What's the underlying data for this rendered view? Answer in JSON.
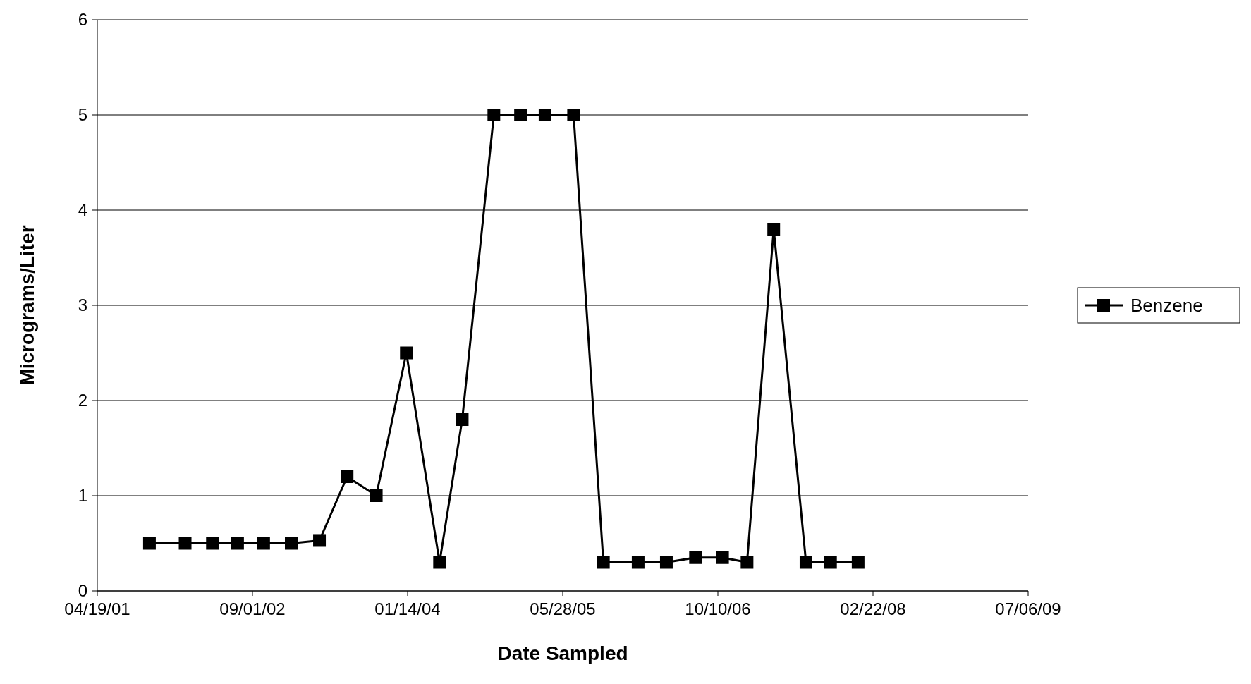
{
  "chart_data": {
    "type": "line",
    "xlabel": "Date Sampled",
    "ylabel": "Micrograms/Liter",
    "x": [
      "2001-10-04",
      "2002-01-27",
      "2002-04-25",
      "2002-07-15",
      "2002-10-07",
      "2003-01-04",
      "2003-04-05",
      "2003-07-03",
      "2003-10-05",
      "2004-01-10",
      "2004-04-26",
      "2004-07-08",
      "2004-10-18",
      "2005-01-12",
      "2005-04-01",
      "2005-07-02",
      "2005-10-06",
      "2006-01-26",
      "2006-04-27",
      "2006-07-30",
      "2006-10-25",
      "2007-01-12",
      "2007-04-08",
      "2007-07-21",
      "2007-10-08",
      "2008-01-05"
    ],
    "series": [
      {
        "name": "Benzene",
        "color": "#000000",
        "values": [
          0.5,
          0.5,
          0.5,
          0.5,
          0.5,
          0.5,
          0.53,
          1.2,
          1.0,
          2.5,
          0.3,
          1.8,
          5,
          5,
          5,
          5,
          0.3,
          0.3,
          0.3,
          0.35,
          0.35,
          0.3,
          3.8,
          0.3,
          0.3,
          0.3
        ]
      }
    ],
    "xlim": [
      "2001-04-19",
      "2009-07-06"
    ],
    "xticks": [
      {
        "value": "2001-04-19",
        "label": "04/19/01"
      },
      {
        "value": "2002-09-01",
        "label": "09/01/02"
      },
      {
        "value": "2004-01-14",
        "label": "01/14/04"
      },
      {
        "value": "2005-05-28",
        "label": "05/28/05"
      },
      {
        "value": "2006-10-10",
        "label": "10/10/06"
      },
      {
        "value": "2008-02-22",
        "label": "02/22/08"
      },
      {
        "value": "2009-07-06",
        "label": "07/06/09"
      }
    ],
    "ylim": [
      0,
      6
    ],
    "yticks": [
      0,
      1,
      2,
      3,
      4,
      5,
      6
    ],
    "grid": "y",
    "legend": "right",
    "marker": "square",
    "line_style": "solid"
  }
}
